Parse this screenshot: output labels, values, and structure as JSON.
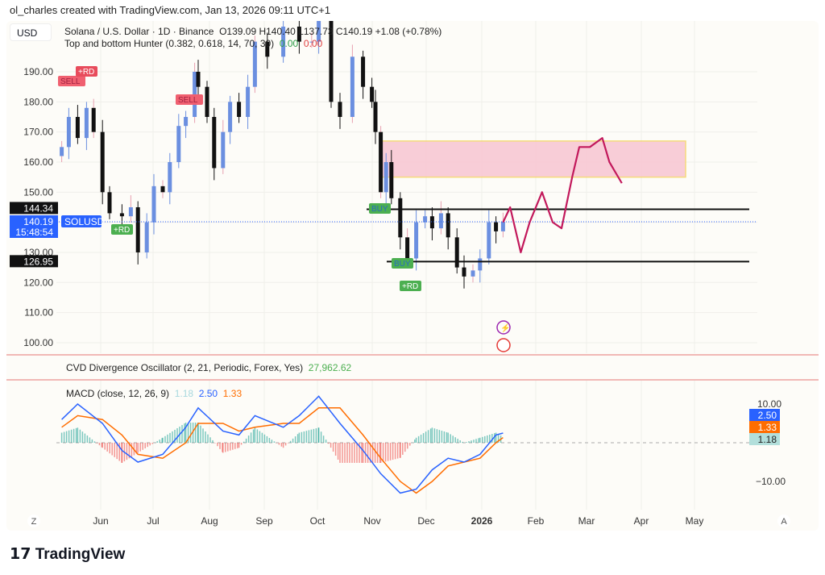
{
  "credit": "ol_charles created with TradingView.com, Jan 13, 2026 09:11 UTC+1",
  "currency_button": "USD",
  "legend": {
    "symbol": "Solana / U.S. Dollar · 1D · Binance",
    "ohlc": "O139.09 H140.40 L137.73 C140.19 +1.08 (+0.78%)",
    "indicator": "Top and bottom Hunter (0.382, 0.618, 14, 70, 30)",
    "ind_v1": "0.00",
    "ind_v2": "0.00",
    "cvd": "CVD Divergence Oscillator (2, 21, Periodic, Forex, Yes)",
    "cvd_value": "27,962.62",
    "macd": "MACD (close, 12, 26, 9)",
    "macd_hist": "1.18",
    "macd_line": "2.50",
    "macd_signal": "1.33"
  },
  "price_axis": {
    "ticks": [
      "190.00",
      "180.00",
      "170.00",
      "160.00",
      "150.00",
      "130.00",
      "120.00",
      "110.00",
      "100.00"
    ],
    "level_high": "144.34",
    "level_low": "126.95",
    "last_price": "140.19",
    "countdown": "15:48:54",
    "symbol_tag": "SOLUSD"
  },
  "macd_axis": {
    "ticks": [
      "10.00",
      "−10.00"
    ]
  },
  "time_axis": {
    "labels": [
      "Jun",
      "Jul",
      "Aug",
      "Sep",
      "Oct",
      "Nov",
      "Dec",
      "2026",
      "Feb",
      "Mar",
      "Apr",
      "May"
    ],
    "left_button": "Z",
    "right_button": "A"
  },
  "signals": {
    "sell": "SELL",
    "buy": "BUY",
    "rd": "+RD"
  },
  "logo": "TradingView",
  "colors": {
    "bull": "#6b8fe0",
    "bear": "#111111",
    "projection": "#c2185b",
    "zone": "#f8c8d4",
    "macd": "#2962ff",
    "signal": "#ff6d00",
    "last": "#2962ff",
    "separator": "#e57373"
  },
  "chart_data": {
    "type": "candlestick",
    "symbol": "SOLUSD",
    "ylim": [
      95,
      205
    ],
    "closes": [
      [
        "2025-05-09",
        165
      ],
      [
        "2025-05-13",
        175
      ],
      [
        "2025-05-18",
        168
      ],
      [
        "2025-05-23",
        178
      ],
      [
        "2025-05-27",
        170
      ],
      [
        "2025-06-01",
        150
      ],
      [
        "2025-06-05",
        143
      ],
      [
        "2025-06-12",
        142
      ],
      [
        "2025-06-17",
        145
      ],
      [
        "2025-06-21",
        130
      ],
      [
        "2025-06-26",
        140
      ],
      [
        "2025-06-30",
        152
      ],
      [
        "2025-07-05",
        150
      ],
      [
        "2025-07-09",
        160
      ],
      [
        "2025-07-14",
        172
      ],
      [
        "2025-07-18",
        175
      ],
      [
        "2025-07-23",
        190
      ],
      [
        "2025-07-25",
        185
      ],
      [
        "2025-07-30",
        175
      ],
      [
        "2025-08-03",
        158
      ],
      [
        "2025-08-08",
        170
      ],
      [
        "2025-08-12",
        180
      ],
      [
        "2025-08-17",
        175
      ],
      [
        "2025-08-22",
        185
      ],
      [
        "2025-08-26",
        200
      ],
      [
        "2025-09-02",
        195
      ],
      [
        "2025-09-11",
        205
      ],
      [
        "2025-09-20",
        200
      ],
      [
        "2025-09-27",
        200
      ],
      [
        "2025-10-01",
        210
      ],
      [
        "2025-10-08",
        180
      ],
      [
        "2025-10-13",
        175
      ],
      [
        "2025-10-20",
        195
      ],
      [
        "2025-10-26",
        185
      ],
      [
        "2025-10-31",
        180
      ],
      [
        "2025-11-02",
        170
      ],
      [
        "2025-11-05",
        150
      ],
      [
        "2025-11-08",
        160
      ],
      [
        "2025-11-11",
        148
      ],
      [
        "2025-11-16",
        135
      ],
      [
        "2025-11-20",
        128
      ],
      [
        "2025-11-25",
        140
      ],
      [
        "2025-11-30",
        142
      ],
      [
        "2025-12-04",
        138
      ],
      [
        "2025-12-09",
        143
      ],
      [
        "2025-12-13",
        135
      ],
      [
        "2025-12-18",
        125
      ],
      [
        "2025-12-22",
        122
      ],
      [
        "2025-12-27",
        124
      ],
      [
        "2025-12-31",
        128
      ],
      [
        "2026-01-05",
        140
      ],
      [
        "2026-01-09",
        137
      ],
      [
        "2026-01-13",
        140.19
      ]
    ],
    "horizontal_levels": [
      144.34,
      126.95
    ],
    "last_price": 140.19,
    "zone": {
      "from": "2025-11-05",
      "to": "2026-04-26",
      "low": 155,
      "high": 167
    },
    "projection": [
      [
        "2026-01-13",
        140
      ],
      [
        "2026-01-17",
        145
      ],
      [
        "2026-01-23",
        130
      ],
      [
        "2026-01-28",
        140
      ],
      [
        "2026-02-04",
        150
      ],
      [
        "2026-02-10",
        140
      ],
      [
        "2026-02-15",
        138
      ],
      [
        "2026-02-21",
        155
      ],
      [
        "2026-02-25",
        165
      ],
      [
        "2026-03-03",
        165
      ],
      [
        "2026-03-10",
        168
      ],
      [
        "2026-03-14",
        160
      ],
      [
        "2026-03-21",
        153
      ]
    ],
    "macd_series": [
      [
        "2025-05-09",
        6,
        4
      ],
      [
        "2025-05-18",
        10,
        7
      ],
      [
        "2025-06-01",
        5,
        6
      ],
      [
        "2025-06-12",
        -2,
        2
      ],
      [
        "2025-06-21",
        -5,
        -3
      ],
      [
        "2025-07-05",
        -3,
        -4
      ],
      [
        "2025-07-18",
        4,
        0
      ],
      [
        "2025-07-25",
        9,
        5
      ],
      [
        "2025-08-08",
        3,
        5
      ],
      [
        "2025-08-17",
        2,
        3
      ],
      [
        "2025-08-26",
        7,
        4
      ],
      [
        "2025-09-11",
        4,
        5
      ],
      [
        "2025-09-20",
        7,
        5
      ],
      [
        "2025-10-01",
        12,
        9
      ],
      [
        "2025-10-13",
        5,
        9
      ],
      [
        "2025-10-26",
        -2,
        2
      ],
      [
        "2025-11-05",
        -8,
        -4
      ],
      [
        "2025-11-16",
        -13,
        -10
      ],
      [
        "2025-11-25",
        -12,
        -13
      ],
      [
        "2025-12-04",
        -7,
        -10
      ],
      [
        "2025-12-13",
        -4,
        -6
      ],
      [
        "2025-12-22",
        -5,
        -5
      ],
      [
        "2025-12-31",
        -3,
        -4
      ],
      [
        "2026-01-09",
        2,
        0
      ],
      [
        "2026-01-13",
        2.5,
        1.33
      ]
    ]
  }
}
